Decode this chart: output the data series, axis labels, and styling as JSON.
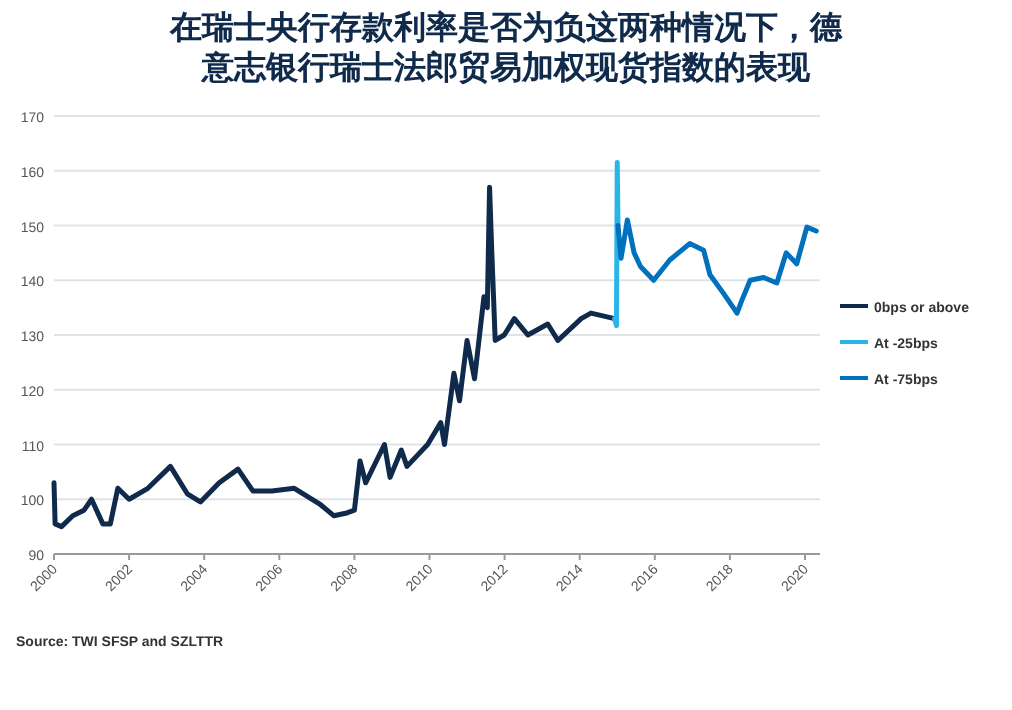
{
  "chart_data": {
    "type": "line",
    "title": "在瑞士央行存款利率是否为负这两种情况下，德意志银行瑞士法郎贸易加权现货指数的表现",
    "xlim": [
      2000,
      2020.4
    ],
    "xticks": [
      2000,
      2002,
      2004,
      2006,
      2008,
      2010,
      2012,
      2014,
      2016,
      2018,
      2020
    ],
    "ylim": [
      90,
      170
    ],
    "yticks": [
      90,
      100,
      110,
      120,
      130,
      140,
      150,
      160,
      170
    ],
    "grid": "y",
    "legend": "right",
    "annotations": [
      "Source: TWI SFSP and SZLTTR"
    ],
    "series": [
      {
        "name": "0bps or above",
        "color": "#0f2a4a",
        "x": [
          2000.0,
          2000.03,
          2000.2,
          2000.5,
          2000.8,
          2001.0,
          2001.3,
          2001.5,
          2001.7,
          2002.0,
          2002.5,
          2003.1,
          2003.55,
          2003.9,
          2004.4,
          2004.9,
          2005.3,
          2005.8,
          2006.4,
          2007.1,
          2007.45,
          2007.8,
          2008.0,
          2008.15,
          2008.3,
          2008.8,
          2008.95,
          2009.25,
          2009.4,
          2009.95,
          2010.3,
          2010.4,
          2010.65,
          2010.8,
          2011.0,
          2011.2,
          2011.45,
          2011.54,
          2011.6,
          2011.66,
          2011.75,
          2011.99,
          2012.26,
          2012.62,
          2013.15,
          2013.42,
          2014.04,
          2014.3,
          2014.93
        ],
        "values": [
          103,
          95.5,
          95,
          97,
          98,
          100,
          95.5,
          95.5,
          102,
          100,
          102,
          106,
          101,
          99.5,
          103,
          105.5,
          101.5,
          101.5,
          102,
          99,
          97,
          97.5,
          98,
          107,
          103,
          110,
          104,
          109,
          106,
          110,
          114,
          110,
          123,
          118,
          129,
          122,
          137,
          135,
          157,
          145,
          129,
          130,
          133,
          130,
          132,
          129,
          133,
          134,
          133
        ]
      },
      {
        "name": "At -25bps",
        "color": "#29b5e8",
        "x": [
          2014.93,
          2014.98,
          2015.0,
          2015.02
        ],
        "values": [
          133,
          131.7,
          161.5,
          150
        ]
      },
      {
        "name": "At -75bps",
        "color": "#0071bc",
        "x": [
          2015.02,
          2015.1,
          2015.27,
          2015.45,
          2015.62,
          2015.97,
          2016.4,
          2016.93,
          2017.3,
          2017.47,
          2017.83,
          2018.19,
          2018.3,
          2018.54,
          2018.9,
          2019.25,
          2019.5,
          2019.78,
          2020.05,
          2020.3
        ],
        "values": [
          150,
          144,
          151,
          145,
          142.5,
          140,
          143.7,
          146.7,
          145.5,
          141,
          137.6,
          134,
          136,
          140,
          140.5,
          139.5,
          145,
          143,
          149.7,
          149
        ]
      }
    ]
  }
}
